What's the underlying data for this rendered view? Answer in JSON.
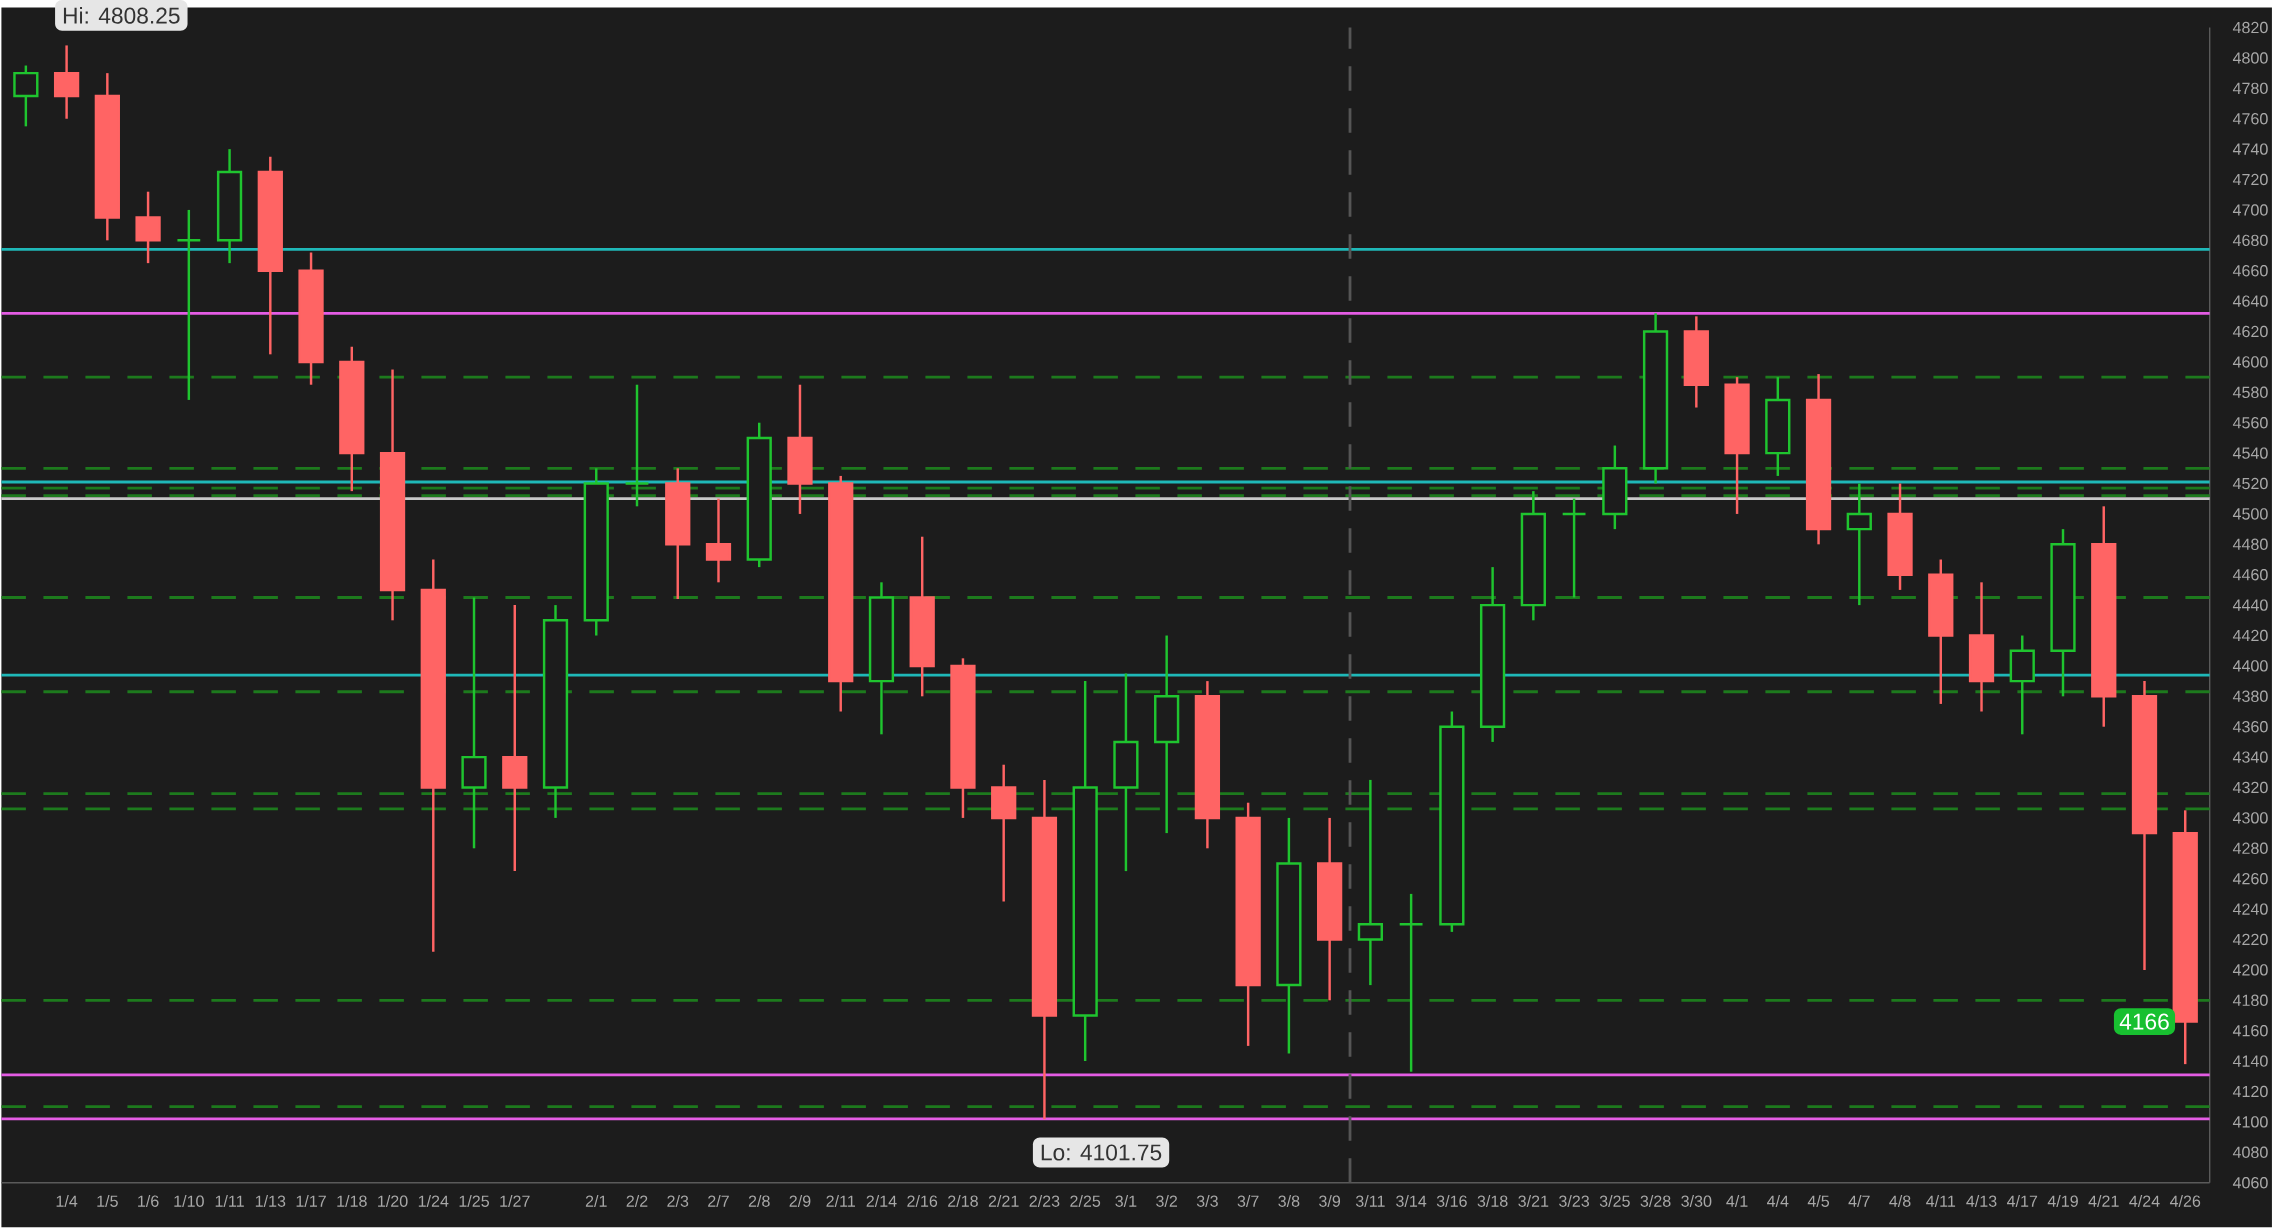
{
  "chart_data": {
    "type": "candlestick",
    "categories": [
      null,
      "1/4",
      "1/5",
      "1/6",
      "1/10",
      "1/11",
      "1/13",
      "1/17",
      "1/18",
      "1/20",
      "1/24",
      "1/25",
      "1/27",
      null,
      "2/1",
      "2/2",
      "2/3",
      "2/7",
      "2/8",
      "2/9",
      "2/11",
      "2/14",
      "2/16",
      "2/18",
      "2/21",
      "2/23",
      "2/25",
      "3/1",
      "3/2",
      "3/3",
      "3/7",
      "3/8",
      "3/9",
      "3/11",
      "3/14",
      "3/16",
      "3/18",
      "3/21",
      "3/23",
      "3/25",
      "3/28",
      "3/30",
      "4/1",
      "4/4",
      "4/5",
      "4/7",
      "4/8",
      "4/11",
      "4/13",
      "4/17",
      "4/19",
      "4/21",
      "4/24",
      "4/26"
    ],
    "ohlc": [
      [
        4775,
        4795,
        4755,
        4790
      ],
      [
        4790,
        4808.25,
        4760,
        4775
      ],
      [
        4775,
        4790,
        4680,
        4695
      ],
      [
        4695,
        4712,
        4665,
        4680
      ],
      [
        4680,
        4700,
        4575,
        4680
      ],
      [
        4680,
        4740,
        4665,
        4725
      ],
      [
        4725,
        4735,
        4605,
        4660
      ],
      [
        4660,
        4672,
        4585,
        4600
      ],
      [
        4600,
        4610,
        4515,
        4540
      ],
      [
        4540,
        4595,
        4430,
        4450
      ],
      [
        4450,
        4470,
        4212,
        4320
      ],
      [
        4320,
        4445,
        4280,
        4340
      ],
      [
        4340,
        4440,
        4265,
        4320
      ],
      [
        4320,
        4440,
        4300,
        4430
      ],
      [
        4430,
        4530,
        4420,
        4520
      ],
      [
        4520,
        4585,
        4505,
        4520
      ],
      [
        4520,
        4530,
        4444,
        4480
      ],
      [
        4480,
        4510,
        4455,
        4470
      ],
      [
        4470,
        4560,
        4465,
        4550
      ],
      [
        4550,
        4585,
        4500,
        4520
      ],
      [
        4520,
        4525,
        4370,
        4390
      ],
      [
        4390,
        4455,
        4355,
        4445
      ],
      [
        4445,
        4485,
        4380,
        4400
      ],
      [
        4400,
        4405,
        4300,
        4320
      ],
      [
        4320,
        4335,
        4245,
        4300
      ],
      [
        4300,
        4325,
        4101.75,
        4170
      ],
      [
        4170,
        4390,
        4140,
        4320
      ],
      [
        4320,
        4395,
        4265,
        4350
      ],
      [
        4350,
        4420,
        4290,
        4380
      ],
      [
        4380,
        4390,
        4280,
        4300
      ],
      [
        4300,
        4310,
        4150,
        4190
      ],
      [
        4190,
        4300,
        4145,
        4270
      ],
      [
        4270,
        4300,
        4180,
        4220
      ],
      [
        4220,
        4325,
        4190,
        4230
      ],
      [
        4230,
        4250,
        4133,
        4230
      ],
      [
        4230,
        4370,
        4225,
        4360
      ],
      [
        4360,
        4465,
        4350,
        4440
      ],
      [
        4440,
        4515,
        4430,
        4500
      ],
      [
        4500,
        4510,
        4445,
        4500
      ],
      [
        4500,
        4545,
        4490,
        4530
      ],
      [
        4530,
        4632,
        4520,
        4620
      ],
      [
        4620,
        4630,
        4570,
        4585
      ],
      [
        4585,
        4590,
        4500,
        4540
      ],
      [
        4540,
        4590,
        4525,
        4575
      ],
      [
        4575,
        4592,
        4480,
        4490
      ],
      [
        4490,
        4520,
        4440,
        4500
      ],
      [
        4500,
        4520,
        4450,
        4460
      ],
      [
        4460,
        4470,
        4375,
        4420
      ],
      [
        4420,
        4455,
        4370,
        4390
      ],
      [
        4390,
        4420,
        4355,
        4410
      ],
      [
        4410,
        4490,
        4380,
        4480
      ],
      [
        4480,
        4505,
        4360,
        4380
      ],
      [
        4380,
        4390,
        4200,
        4290
      ],
      [
        4290,
        4305,
        4138,
        4166
      ]
    ],
    "ylim": [
      4060,
      4820
    ],
    "yticks": [
      4060,
      4080,
      4100,
      4120,
      4140,
      4160,
      4180,
      4200,
      4220,
      4240,
      4260,
      4280,
      4300,
      4320,
      4340,
      4360,
      4380,
      4400,
      4420,
      4440,
      4460,
      4480,
      4500,
      4520,
      4540,
      4560,
      4580,
      4600,
      4620,
      4640,
      4660,
      4680,
      4700,
      4720,
      4740,
      4760,
      4780,
      4800,
      4820
    ],
    "ref_lines": [
      {
        "axis": "y",
        "value": 4674,
        "color": "#1fb8b8",
        "line_style": "solid"
      },
      {
        "axis": "y",
        "value": 4632,
        "color": "#e45ce4",
        "line_style": "solid"
      },
      {
        "axis": "y",
        "value": 4590,
        "color": "#1d7a1d",
        "line_style": "dashed"
      },
      {
        "axis": "y",
        "value": 4530,
        "color": "#1d7a1d",
        "line_style": "dashed"
      },
      {
        "axis": "y",
        "value": 4521,
        "color": "#1fb8b8",
        "line_style": "solid"
      },
      {
        "axis": "y",
        "value": 4517,
        "color": "#1d7a1d",
        "line_style": "dashed"
      },
      {
        "axis": "y",
        "value": 4512,
        "color": "#1d7a1d",
        "line_style": "dashed"
      },
      {
        "axis": "y",
        "value": 4510,
        "color": "#c8c8c8",
        "line_style": "solid"
      },
      {
        "axis": "y",
        "value": 4445,
        "color": "#1d7a1d",
        "line_style": "dashed"
      },
      {
        "axis": "y",
        "value": 4394,
        "color": "#1fb8b8",
        "line_style": "solid"
      },
      {
        "axis": "y",
        "value": 4383,
        "color": "#1d7a1d",
        "line_style": "dashed"
      },
      {
        "axis": "y",
        "value": 4316,
        "color": "#1d7a1d",
        "line_style": "dashed"
      },
      {
        "axis": "y",
        "value": 4306,
        "color": "#1d7a1d",
        "line_style": "dashed"
      },
      {
        "axis": "y",
        "value": 4180,
        "color": "#1d7a1d",
        "line_style": "dashed"
      },
      {
        "axis": "y",
        "value": 4131,
        "color": "#e45ce4",
        "line_style": "solid"
      },
      {
        "axis": "y",
        "value": 4110,
        "color": "#1d7a1d",
        "line_style": "dashed"
      },
      {
        "axis": "y",
        "value": 4102,
        "color": "#e45ce4",
        "line_style": "solid"
      },
      {
        "axis": "x",
        "value": "3/11",
        "color": "#555555",
        "line_style": "dashed"
      }
    ],
    "annotations": [
      {
        "text": "Hi: 4808.25",
        "x": "1/4",
        "y": 4808.25
      },
      {
        "text": "Lo: 4101.75",
        "x": "2/23",
        "y": 4101.75
      },
      "4166"
    ]
  }
}
